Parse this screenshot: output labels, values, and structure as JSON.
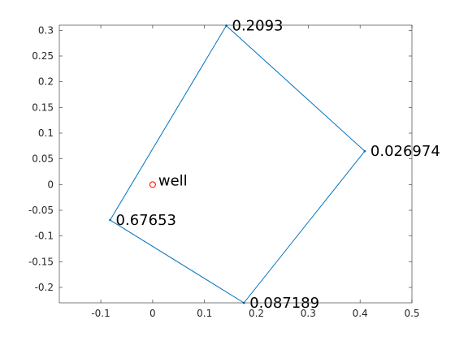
{
  "chart_data": {
    "type": "line",
    "title": "",
    "xlabel": "",
    "ylabel": "",
    "xlim": [
      -0.18,
      0.5
    ],
    "ylim": [
      -0.23,
      0.31
    ],
    "x_ticks": [
      -0.1,
      0,
      0.1,
      0.2,
      0.3,
      0.4,
      0.5
    ],
    "x_tick_labels": [
      "-0.1",
      "0",
      "0.1",
      "0.2",
      "0.3",
      "0.4",
      "0.5"
    ],
    "y_ticks": [
      -0.2,
      -0.15,
      -0.1,
      -0.05,
      0,
      0.05,
      0.1,
      0.15,
      0.2,
      0.25,
      0.3
    ],
    "y_tick_labels": [
      "-0.2",
      "-0.15",
      "-0.1",
      "-0.05",
      "0",
      "0.05",
      "0.1",
      "0.15",
      "0.2",
      "0.25",
      "0.3"
    ],
    "grid": false,
    "series": [
      {
        "type": "line",
        "color": "#0072BD",
        "closed": true,
        "points": [
          {
            "x": 0.142,
            "y": 0.309,
            "label": "0.2093"
          },
          {
            "x": 0.409,
            "y": 0.065,
            "label": "0.026974"
          },
          {
            "x": 0.176,
            "y": -0.23,
            "label": "0.087189"
          },
          {
            "x": -0.082,
            "y": -0.069,
            "label": "0.67653"
          }
        ]
      },
      {
        "type": "scatter",
        "color": "#ff0000",
        "marker": "circle",
        "points": [
          {
            "x": 0,
            "y": 0,
            "label": "well"
          }
        ]
      }
    ]
  }
}
